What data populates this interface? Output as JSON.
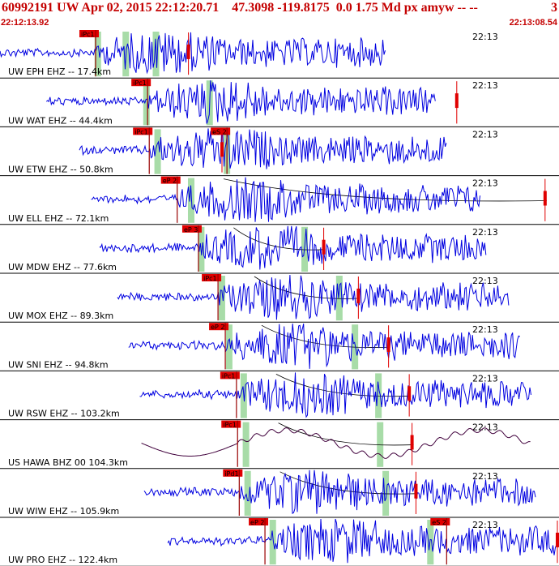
{
  "header": {
    "title": "60992191 UW Apr 02, 2015 22:12:20.71    47.3098 -119.8175  0.0 1.75 Md px amyw -- --",
    "title_right": "3",
    "time_start": "22:12:13.92",
    "time_end": "22:13:08.54"
  },
  "colors": {
    "trace": "#0000e0",
    "trace_alt": "#40003c",
    "pick": "#e00000",
    "window": "#a8dca8",
    "header_text": "#c40000",
    "separator": "#000000"
  },
  "chart_data": {
    "type": "line",
    "title": "",
    "xlabel": "",
    "ylabel": "",
    "time_marker": "22:13",
    "series": [
      {
        "station": "UW EPH EHZ -- 17.4km",
        "picks": [
          {
            "label": "iPc1",
            "t": 0.171
          }
        ],
        "windows": [
          0.175,
          0.225,
          0.279
        ],
        "trace_start": 0.0,
        "trace_end": 0.69,
        "amp": 1.0,
        "color": "trace",
        "curve": false,
        "end_marker": 0.34
      },
      {
        "station": "UW WAT EHZ -- 44.4km",
        "picks": [
          {
            "label": "iPc1",
            "t": 0.264
          }
        ],
        "windows": [
          0.262,
          0.375
        ],
        "trace_start": 0.083,
        "trace_end": 0.78,
        "amp": 1.0,
        "color": "trace",
        "curve": false,
        "end_marker": 0.82
      },
      {
        "station": "UW ETW EHZ -- 50.8km",
        "picks": [
          {
            "label": "iPc1",
            "t": 0.267
          },
          {
            "label": "eS 2",
            "t": 0.406
          }
        ],
        "windows": [
          0.282,
          0.406
        ],
        "trace_start": 0.142,
        "trace_end": 0.8,
        "amp": 1.0,
        "color": "trace",
        "curve": false,
        "end_marker": 0.4
      },
      {
        "station": "UW ELL EHZ -- 72.1km",
        "picks": [
          {
            "label": "eP 2",
            "t": 0.317
          }
        ],
        "windows": [
          0.342
        ],
        "trace_start": 0.163,
        "trace_end": 0.86,
        "amp": 1.0,
        "color": "trace",
        "curve": true,
        "end_marker": 0.978
      },
      {
        "station": "UW MDW EHZ -- 77.6km",
        "picks": [
          {
            "label": "eP 3",
            "t": 0.355
          }
        ],
        "windows": [
          0.36,
          0.545
        ],
        "trace_start": 0.178,
        "trace_end": 0.87,
        "amp": 1.0,
        "color": "trace",
        "curve": true,
        "end_marker": 0.582
      },
      {
        "station": "UW MOX EHZ -- 89.3km",
        "picks": [
          {
            "label": "iPc1",
            "t": 0.39
          }
        ],
        "windows": [
          0.397,
          0.607
        ],
        "trace_start": 0.21,
        "trace_end": 0.91,
        "amp": 1.0,
        "color": "trace",
        "curve": true,
        "end_marker": 0.644
      },
      {
        "station": "UW SNI EHZ -- 94.8km",
        "picks": [
          {
            "label": "eP 2",
            "t": 0.403
          }
        ],
        "windows": [
          0.41,
          0.635
        ],
        "trace_start": 0.23,
        "trace_end": 0.93,
        "amp": 1.0,
        "color": "trace",
        "curve": true,
        "end_marker": 0.698
      },
      {
        "station": "UW RSW EHZ -- 103.2km",
        "picks": [
          {
            "label": "iPc1",
            "t": 0.423
          }
        ],
        "windows": [
          0.436,
          0.677
        ],
        "trace_start": 0.25,
        "trace_end": 0.95,
        "amp": 1.0,
        "color": "trace",
        "curve": true,
        "end_marker": 0.735
      },
      {
        "station": "US HAWA BHZ 00 104.3km",
        "picks": [
          {
            "label": "iPc1",
            "t": 0.425
          }
        ],
        "windows": [
          0.44,
          0.68
        ],
        "trace_start": 0.253,
        "trace_end": 0.95,
        "amp": 1.0,
        "color": "trace_alt",
        "curve": true,
        "end_marker": 0.74
      },
      {
        "station": "UW WIW EHZ -- 105.9km",
        "picks": [
          {
            "label": "iPd1",
            "t": 0.428
          }
        ],
        "windows": [
          0.443,
          0.69
        ],
        "trace_start": 0.258,
        "trace_end": 0.96,
        "amp": 1.0,
        "color": "trace",
        "curve": true,
        "end_marker": 0.747
      },
      {
        "station": "UW PRO EHZ -- 122.4km",
        "picks": [
          {
            "label": "eP 2",
            "t": 0.474
          },
          {
            "label": "eS 2",
            "t": 0.799
          }
        ],
        "windows": [
          0.488,
          0.77
        ],
        "trace_start": 0.3,
        "trace_end": 1.0,
        "amp": 1.0,
        "color": "trace",
        "curve": false,
        "end_marker": 1.0
      }
    ]
  }
}
